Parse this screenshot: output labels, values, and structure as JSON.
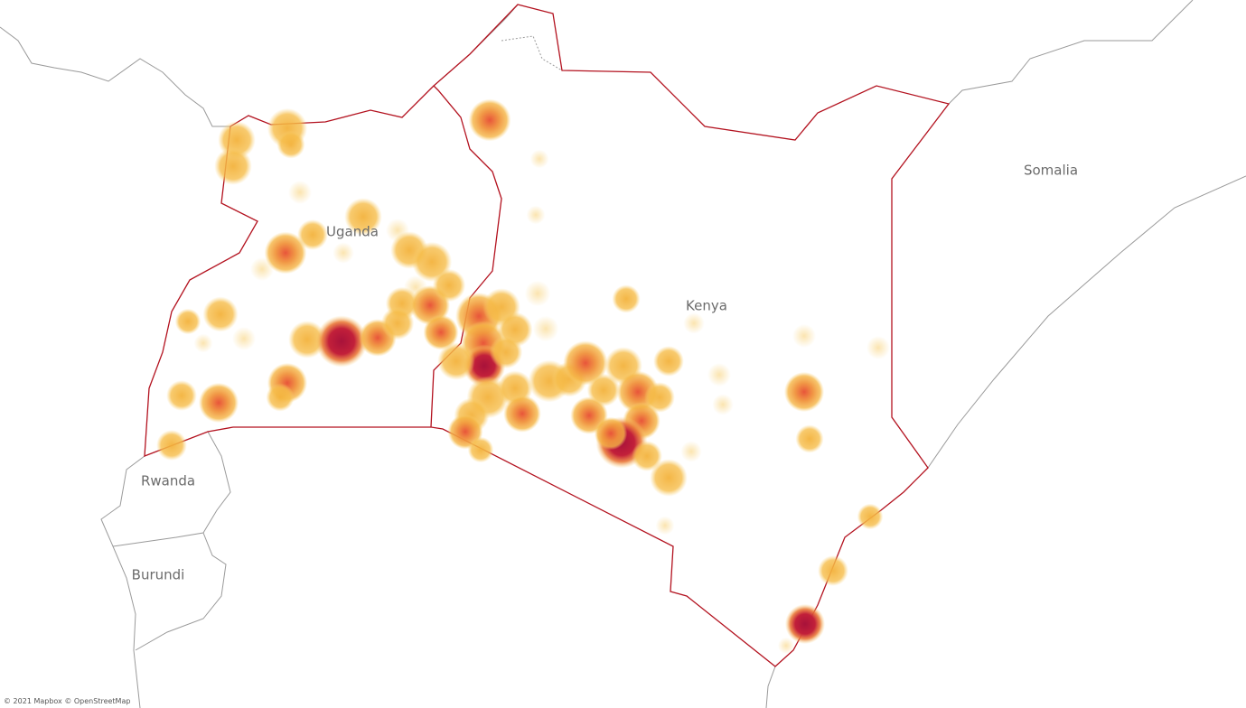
{
  "map": {
    "labels": {
      "uganda": "Uganda",
      "kenya": "Kenya",
      "somalia": "Somalia",
      "rwanda": "Rwanda",
      "burundi": "Burundi"
    },
    "attribution": "© 2021 Mapbox © OpenStreetMap"
  }
}
